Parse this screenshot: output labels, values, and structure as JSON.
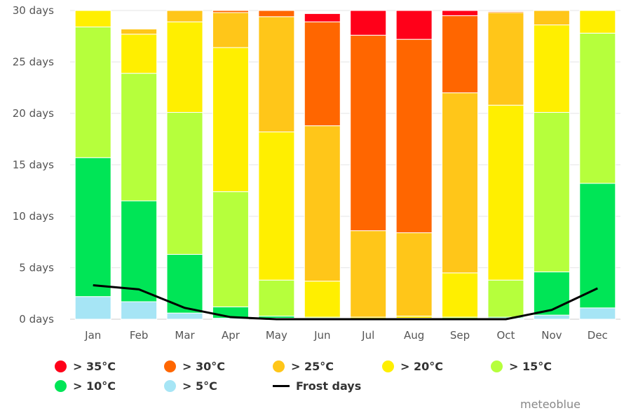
{
  "chart_data": {
    "type": "bar",
    "stacked": true,
    "categories": [
      "Jan",
      "Feb",
      "Mar",
      "Apr",
      "May",
      "Jun",
      "Jul",
      "Aug",
      "Sep",
      "Oct",
      "Nov",
      "Dec"
    ],
    "y_ticks": [
      "0 days",
      "5 days",
      "10 days",
      "15 days",
      "20 days",
      "25 days",
      "30 days"
    ],
    "ylim": [
      0,
      30
    ],
    "grid": true,
    "series": [
      {
        "name": "> 5°C",
        "color": "#a6e5f5",
        "values": [
          2.2,
          1.7,
          0.6,
          0.1,
          0.1,
          0,
          0,
          0,
          0,
          0.1,
          0.4,
          1.1
        ]
      },
      {
        "name": "> 10°C",
        "color": "#00e556",
        "values": [
          13.5,
          9.8,
          5.7,
          1.1,
          0.2,
          0.1,
          0,
          0,
          0,
          0.1,
          4.2,
          12.1
        ]
      },
      {
        "name": "> 15°C",
        "color": "#b6ff3c",
        "values": [
          12.7,
          12.4,
          13.8,
          11.2,
          3.5,
          0.1,
          0,
          0.1,
          0.2,
          3.6,
          15.5,
          14.6
        ]
      },
      {
        "name": "> 20°C",
        "color": "#ffef00",
        "values": [
          1.6,
          3.8,
          8.8,
          14.0,
          14.4,
          3.5,
          0.2,
          0.2,
          4.3,
          17.0,
          8.5,
          2.2
        ]
      },
      {
        "name": "> 25°C",
        "color": "#ffc619",
        "values": [
          0,
          0.5,
          1.1,
          3.4,
          11.2,
          15.1,
          8.4,
          8.1,
          17.5,
          9.0,
          1.4,
          0
        ]
      },
      {
        "name": "> 30°C",
        "color": "#ff6600",
        "values": [
          0,
          0,
          0,
          0.2,
          0.6,
          10.1,
          19.0,
          18.8,
          7.5,
          0.1,
          0,
          0
        ]
      },
      {
        "name": "> 35°C",
        "color": "#ff0019",
        "values": [
          0,
          0,
          0,
          0,
          0,
          0.8,
          2.4,
          2.8,
          0.5,
          0,
          0,
          0
        ]
      }
    ],
    "line_series": {
      "name": "Frost days",
      "color": "#000000",
      "values": [
        3.3,
        2.9,
        1.1,
        0.2,
        0,
        0,
        0,
        0,
        0,
        0,
        0.9,
        3.0
      ]
    },
    "legend_position": "bottom"
  },
  "legend": [
    {
      "label": "> 35°C",
      "color": "#ff0019",
      "kind": "dot"
    },
    {
      "label": "> 30°C",
      "color": "#ff6600",
      "kind": "dot"
    },
    {
      "label": "> 25°C",
      "color": "#ffc619",
      "kind": "dot"
    },
    {
      "label": "> 20°C",
      "color": "#ffef00",
      "kind": "dot"
    },
    {
      "label": "> 15°C",
      "color": "#b6ff3c",
      "kind": "dot"
    },
    {
      "label": "> 10°C",
      "color": "#00e556",
      "kind": "dot"
    },
    {
      "label": "> 5°C",
      "color": "#a6e5f5",
      "kind": "dot"
    },
    {
      "label": "Frost days",
      "color": "#000000",
      "kind": "line"
    }
  ],
  "credit": "meteoblue"
}
